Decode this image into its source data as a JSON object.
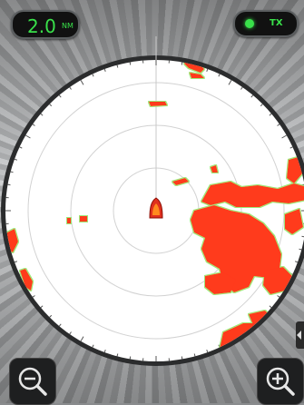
{
  "range": {
    "value": "2.0",
    "unit": "NM"
  },
  "transmit": {
    "label": "TX",
    "indicator_color": "#39e04a",
    "state": "on"
  },
  "colors": {
    "echo_strong": "#ff3a1e",
    "echo_edge": "#9ee87a",
    "accent_green": "#39e04a",
    "range_ring": "#cfcfcf",
    "vessel": "#e0301e"
  },
  "icons": {
    "zoom_out": "magnifier-minus-icon",
    "zoom_in": "magnifier-plus-icon",
    "vessel": "vessel-icon",
    "side_panel": "chevron-left-icon"
  },
  "radar": {
    "range_rings": 4
  }
}
